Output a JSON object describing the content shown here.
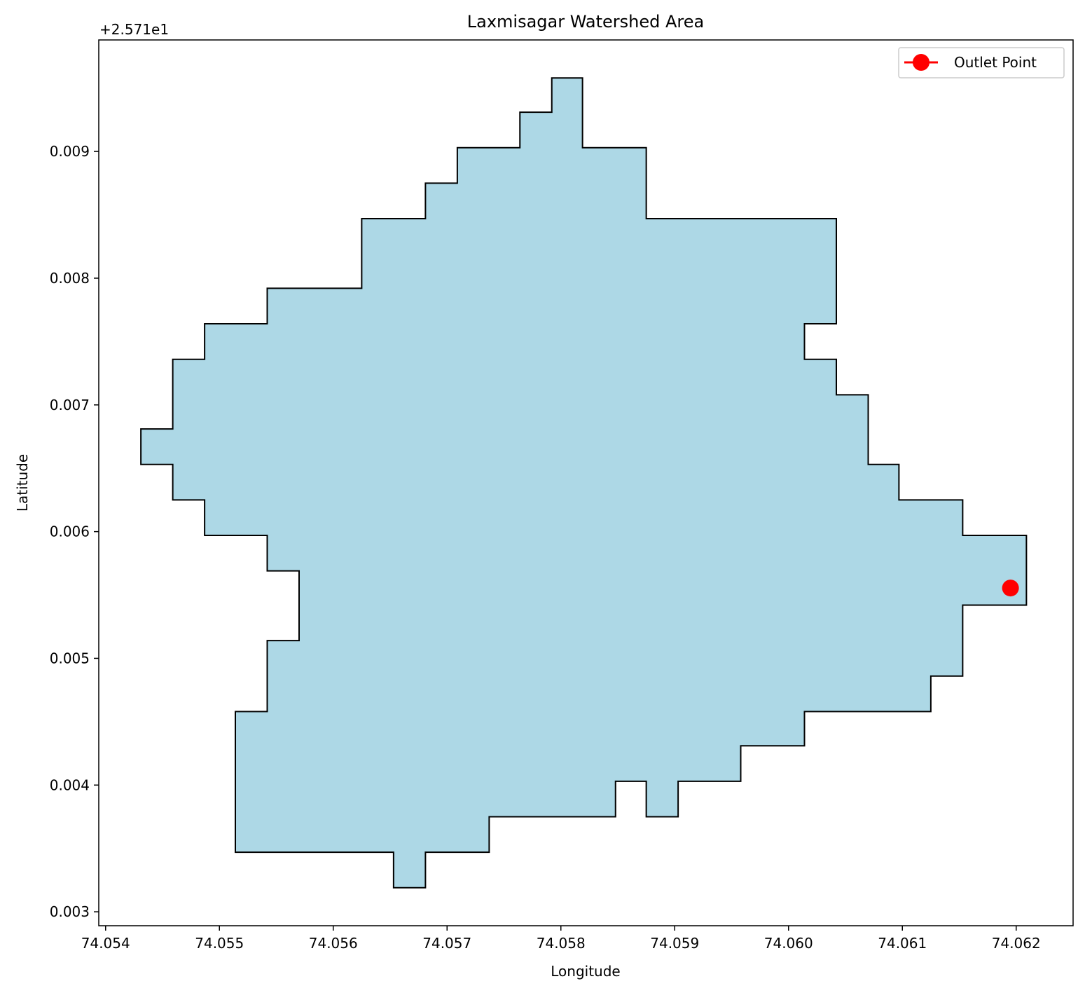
{
  "chart_data": {
    "type": "area",
    "title": "Laxmisagar Watershed Area",
    "xlabel": "Longitude",
    "ylabel": "Latitude",
    "y_offset_label": "+2.571e1",
    "xlim": [
      74.05394,
      74.0625
    ],
    "ylim": [
      0.00289,
      0.00988
    ],
    "x_ticks": [
      74.054,
      74.055,
      74.056,
      74.057,
      74.058,
      74.059,
      74.06,
      74.061,
      74.062
    ],
    "x_tick_labels": [
      "74.054",
      "74.055",
      "74.056",
      "74.057",
      "74.058",
      "74.059",
      "74.060",
      "74.061",
      "74.062"
    ],
    "y_ticks": [
      0.003,
      0.004,
      0.005,
      0.006,
      0.007,
      0.008,
      0.009
    ],
    "y_tick_labels": [
      "0.003",
      "0.004",
      "0.005",
      "0.006",
      "0.007",
      "0.008",
      "0.009"
    ],
    "grid": false,
    "legend_position": "top-right",
    "colors": {
      "fill": "#add8e6",
      "edge": "#000000",
      "outlet": "#ff0000"
    },
    "watershed_polygon": [
      [
        74.05792,
        0.00958
      ],
      [
        74.05819,
        0.00958
      ],
      [
        74.05819,
        0.00903
      ],
      [
        74.05875,
        0.00903
      ],
      [
        74.05875,
        0.00847
      ],
      [
        74.06042,
        0.00847
      ],
      [
        74.06042,
        0.00764
      ],
      [
        74.06014,
        0.00764
      ],
      [
        74.06014,
        0.00736
      ],
      [
        74.06042,
        0.00736
      ],
      [
        74.06042,
        0.00708
      ],
      [
        74.0607,
        0.00708
      ],
      [
        74.0607,
        0.00653
      ],
      [
        74.06097,
        0.00653
      ],
      [
        74.06097,
        0.00625
      ],
      [
        74.06153,
        0.00625
      ],
      [
        74.06153,
        0.00597
      ],
      [
        74.06209,
        0.00597
      ],
      [
        74.06209,
        0.00542
      ],
      [
        74.06153,
        0.00542
      ],
      [
        74.06153,
        0.00486
      ],
      [
        74.06125,
        0.00486
      ],
      [
        74.06125,
        0.00458
      ],
      [
        74.06014,
        0.00458
      ],
      [
        74.06014,
        0.00431
      ],
      [
        74.05958,
        0.00431
      ],
      [
        74.05958,
        0.00403
      ],
      [
        74.05903,
        0.00403
      ],
      [
        74.05903,
        0.00375
      ],
      [
        74.05875,
        0.00375
      ],
      [
        74.05875,
        0.00403
      ],
      [
        74.05848,
        0.00403
      ],
      [
        74.05848,
        0.00375
      ],
      [
        74.05737,
        0.00375
      ],
      [
        74.05737,
        0.00347
      ],
      [
        74.05681,
        0.00347
      ],
      [
        74.05681,
        0.00319
      ],
      [
        74.05653,
        0.00319
      ],
      [
        74.05653,
        0.00347
      ],
      [
        74.05514,
        0.00347
      ],
      [
        74.05514,
        0.00458
      ],
      [
        74.05542,
        0.00458
      ],
      [
        74.05542,
        0.00514
      ],
      [
        74.0557,
        0.00514
      ],
      [
        74.0557,
        0.00569
      ],
      [
        74.05542,
        0.00569
      ],
      [
        74.05542,
        0.00597
      ],
      [
        74.05487,
        0.00597
      ],
      [
        74.05487,
        0.00625
      ],
      [
        74.05459,
        0.00625
      ],
      [
        74.05459,
        0.00653
      ],
      [
        74.05431,
        0.00653
      ],
      [
        74.05431,
        0.00681
      ],
      [
        74.05459,
        0.00681
      ],
      [
        74.05459,
        0.00736
      ],
      [
        74.05487,
        0.00736
      ],
      [
        74.05487,
        0.00764
      ],
      [
        74.05542,
        0.00764
      ],
      [
        74.05542,
        0.00792
      ],
      [
        74.05625,
        0.00792
      ],
      [
        74.05625,
        0.00847
      ],
      [
        74.05681,
        0.00847
      ],
      [
        74.05681,
        0.00875
      ],
      [
        74.05709,
        0.00875
      ],
      [
        74.05709,
        0.00903
      ],
      [
        74.05764,
        0.00903
      ],
      [
        74.05764,
        0.00931
      ],
      [
        74.05792,
        0.00931
      ]
    ],
    "series": [
      {
        "name": "Outlet Point",
        "x": [
          74.06195
        ],
        "y": [
          0.005555
        ]
      }
    ]
  }
}
